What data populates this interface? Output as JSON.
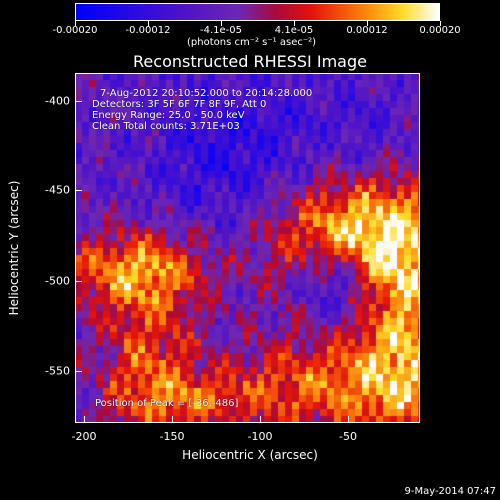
{
  "colorbar": {
    "ticks": [
      "-0.00020",
      "-0.00012",
      "-4.1e-05",
      "4.1e-05",
      "0.00012",
      "0.00020"
    ],
    "units": "(photons cm⁻² s⁻¹ asec⁻²)"
  },
  "title": "Reconstructed RHESSI Image",
  "info": {
    "time": "7-Aug-2012 20:10:52.000 to 20:14:28.000",
    "detectors": "Detectors: 3F 5F 6F 7F 8F 9F, Att 0",
    "energy": "Energy Range: 25.0 - 50.0 keV",
    "clean": "Clean     Total counts: 3.71E+03",
    "peak": "Position of Peak = [-36,-486]"
  },
  "axes": {
    "xlabel": "Heliocentric X (arcsec)",
    "ylabel": "Heliocentric Y (arcsec)",
    "x_ticks": [
      "-200",
      "-150",
      "-100",
      "-50"
    ],
    "y_ticks": [
      "-400",
      "-450",
      "-500",
      "-550"
    ],
    "x_range": [
      -205,
      -8
    ],
    "y_range": [
      -385,
      -585
    ]
  },
  "footer": {
    "timestamp": "9-May-2014 07:47"
  }
}
